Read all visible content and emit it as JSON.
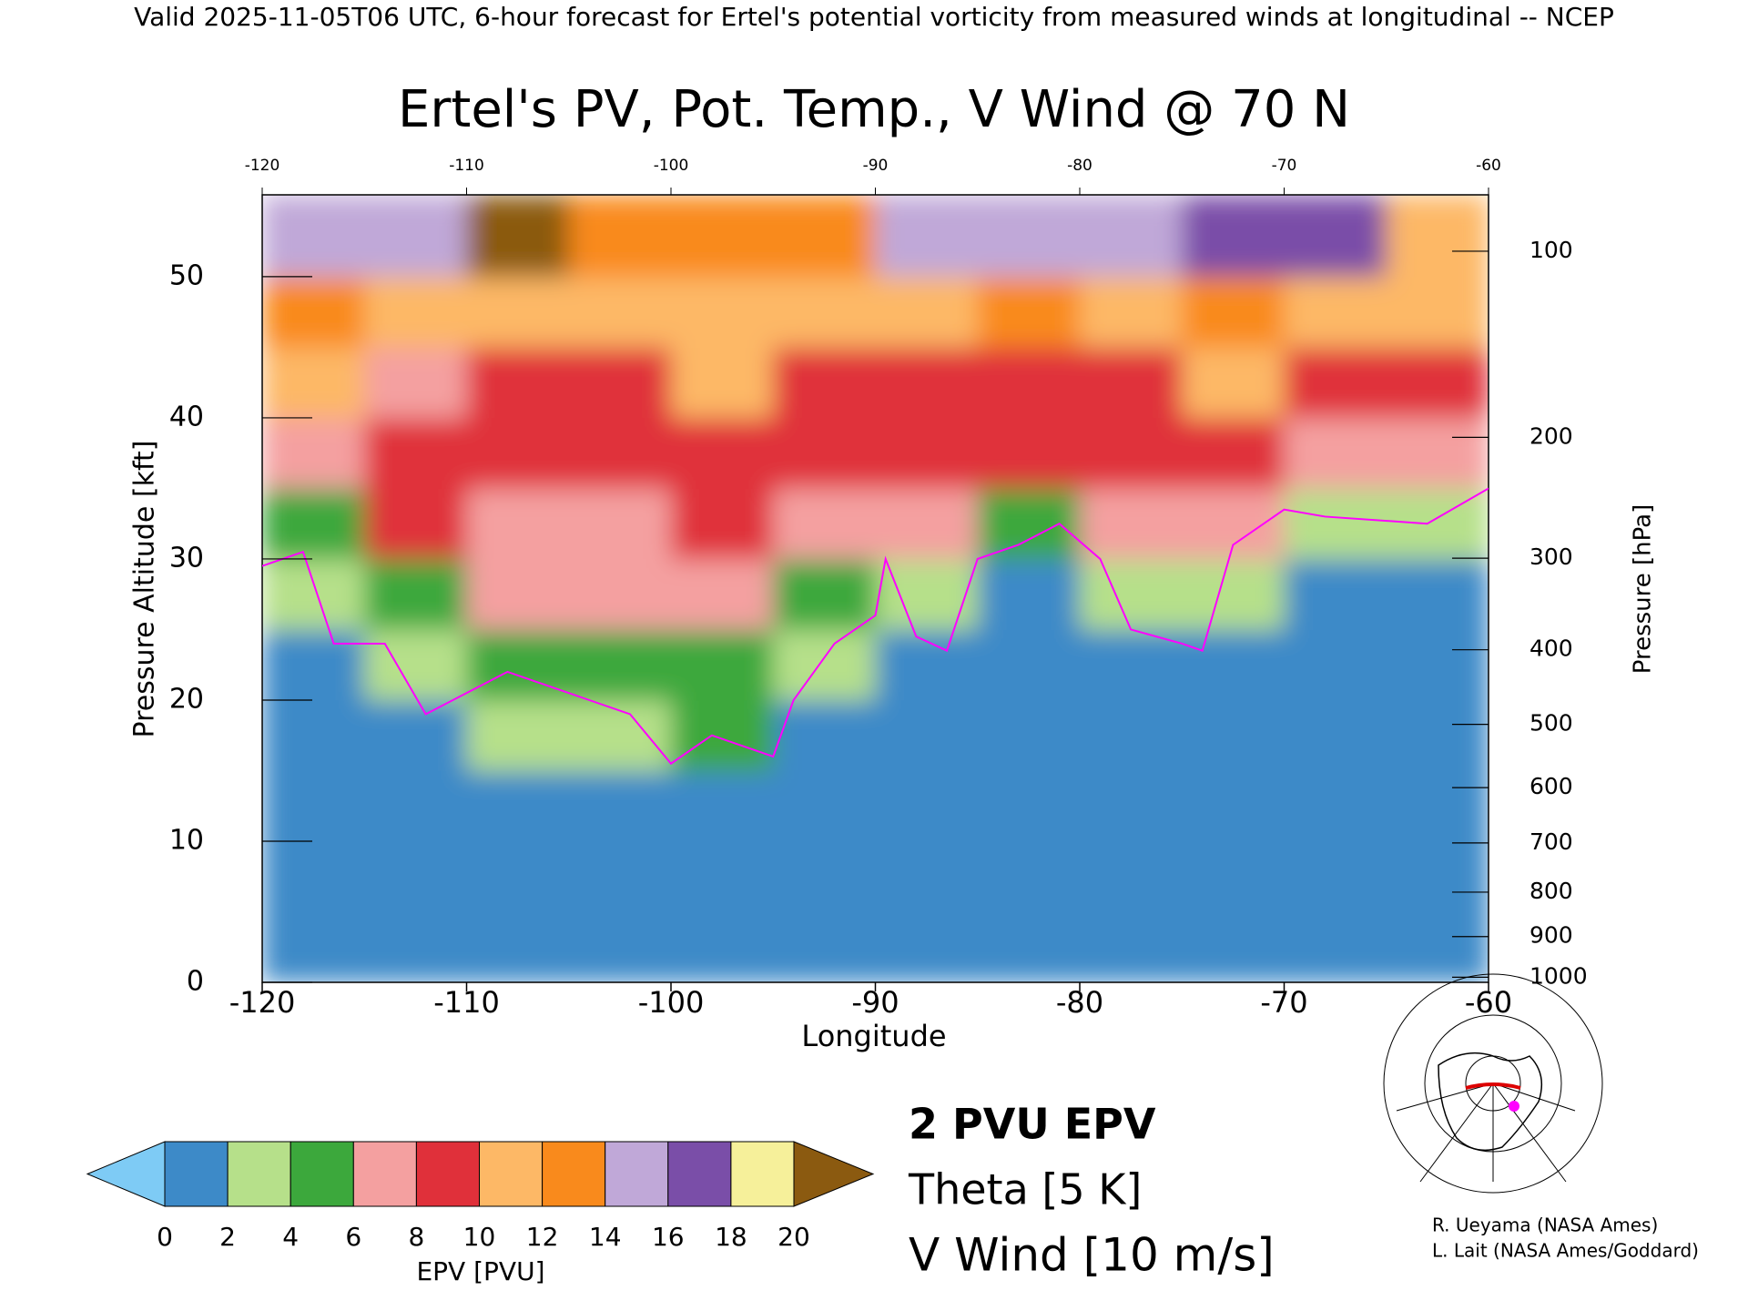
{
  "chart_data": {
    "type": "contour",
    "header": "Valid 2025-11-05T06 UTC, 6-hour forecast for Ertel's potential vorticity from measured winds at longitudinal -- NCEP",
    "title": "Ertel's PV, Pot. Temp., V Wind @ 70 N",
    "xlabel": "Longitude",
    "ylabel": "Pressure Altitude [kft]",
    "y2label": "Pressure [hPa]",
    "xlim": [
      -120,
      -60
    ],
    "xticks": [
      -120,
      -110,
      -100,
      -90,
      -80,
      -70,
      -60
    ],
    "ylim": [
      0,
      55.8
    ],
    "yticks": [
      0,
      10,
      20,
      30,
      40,
      50
    ],
    "y2ticks": [
      100,
      200,
      300,
      400,
      500,
      600,
      700,
      800,
      900,
      1000
    ],
    "y2_scale": "pressure-altitude",
    "x_centers": [
      -117.5,
      -112.5,
      -107.5,
      -102.5,
      -97.5,
      -92.5,
      -87.5,
      -82.5,
      -77.5,
      -72.5,
      -67.5,
      -62.5
    ],
    "y_centers": [
      2.5,
      7.5,
      12.5,
      17.5,
      22.5,
      27.5,
      32.5,
      37.5,
      42.5,
      47.5,
      52.5
    ],
    "values": [
      [
        1,
        1,
        1,
        1,
        1,
        3,
        5,
        6,
        10,
        12,
        14
      ],
      [
        1,
        1,
        1,
        1,
        3,
        5,
        8,
        8,
        7,
        11,
        15
      ],
      [
        1,
        1,
        1,
        3,
        5,
        7,
        7,
        8,
        9,
        11,
        20
      ],
      [
        1,
        1,
        1,
        3,
        5,
        7,
        7,
        8,
        9,
        11,
        13
      ],
      [
        1,
        1,
        1,
        4,
        5,
        7,
        8,
        9,
        10,
        11,
        12
      ],
      [
        1,
        1,
        1,
        1,
        3,
        5,
        7,
        9,
        9,
        11,
        13
      ],
      [
        1,
        1,
        1,
        1,
        1,
        3,
        6,
        9,
        9,
        11,
        14
      ],
      [
        1,
        1,
        1,
        1,
        1,
        1,
        5,
        8,
        9,
        12,
        15
      ],
      [
        1,
        1,
        1,
        1,
        1,
        3,
        6,
        8,
        9,
        11,
        15
      ],
      [
        1,
        1,
        1,
        1,
        1,
        3,
        7,
        8,
        10,
        12,
        16
      ],
      [
        1,
        1,
        1,
        1,
        1,
        1,
        3,
        7,
        9,
        11,
        17
      ],
      [
        1,
        1,
        1,
        1,
        1,
        1,
        3,
        6,
        9,
        11,
        10
      ]
    ],
    "colorbar": {
      "label": "EPV [PVU]",
      "bounds": [
        0,
        2,
        4,
        6,
        8,
        10,
        12,
        14,
        16,
        18,
        20
      ],
      "colors": [
        "#7ecbf5",
        "#3d8ac8",
        "#b6e08a",
        "#3ca83c",
        "#f4a0a0",
        "#e0303a",
        "#fdb866",
        "#f98a1c",
        "#c0a8d8",
        "#7a4ea8",
        "#f6f09a",
        "#8b5a10"
      ]
    },
    "contour": {
      "name": "2 PVU EPV",
      "color": "#ff00ff",
      "x": [
        -120,
        -118,
        -116.5,
        -114,
        -112,
        -108,
        -105,
        -102,
        -100,
        -98,
        -95,
        -94,
        -92,
        -90,
        -89.5,
        -88,
        -86.5,
        -85,
        -83,
        -81,
        -79,
        -77.5,
        -75,
        -74,
        -72.5,
        -70,
        -68,
        -63,
        -60
      ],
      "y": [
        29.5,
        30.5,
        24,
        24,
        19,
        22,
        20.5,
        19,
        15.5,
        17.5,
        16,
        20,
        24,
        26,
        30,
        24.5,
        23.5,
        30,
        31,
        32.5,
        30,
        25,
        24,
        23.5,
        31,
        33.5,
        33,
        32.5,
        35
      ]
    },
    "legend": [
      {
        "name": "Theta [5 K]",
        "color": "#aaaaaa"
      },
      {
        "name": "V Wind [10 m/s]",
        "color": "#000000"
      }
    ],
    "credits": [
      "R. Ueyama (NASA Ames)",
      "L. Lait (NASA Ames/Goddard)"
    ]
  }
}
